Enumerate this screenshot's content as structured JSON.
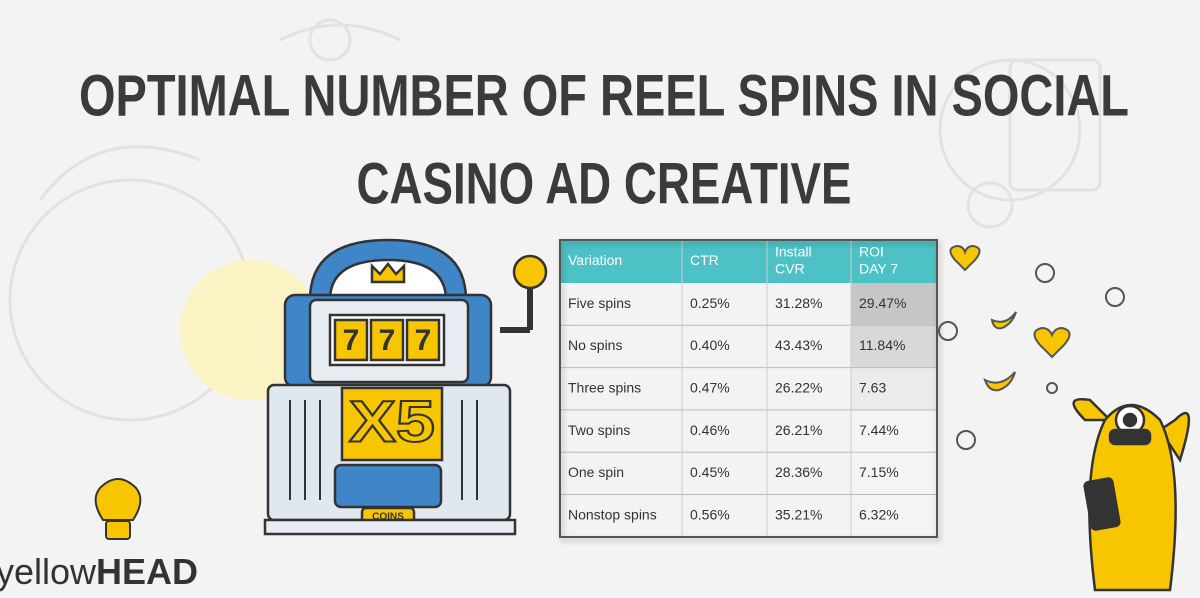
{
  "title": [
    "OPTIMAL NUMBER OF REEL SPINS IN SOCIAL",
    "CASINO AD CREATIVE"
  ],
  "table": {
    "header": [
      [
        "Variation"
      ],
      [
        "CTR"
      ],
      [
        "Install",
        "CVR"
      ],
      [
        "ROI",
        "DAY 7"
      ]
    ],
    "rows": [
      [
        "Five spins",
        "0.25%",
        "31.28%",
        "29.47%"
      ],
      [
        "No spins",
        "0.40%",
        "43.43%",
        "11.84%"
      ],
      [
        "Three spins",
        "0.47%",
        "26.22%",
        "7.63"
      ],
      [
        "Two spins",
        "0.46%",
        "26.21%",
        "7.44%"
      ],
      [
        "One spin",
        "0.45%",
        "28.36%",
        "7.15%"
      ],
      [
        "Nonstop spins",
        "0.56%",
        "35.21%",
        "6.32%"
      ]
    ]
  },
  "slot_machine": {
    "reels": [
      "7",
      "7",
      "7"
    ],
    "multiplier": "X5",
    "label": "COINS"
  },
  "logo": {
    "prefix": "yellow",
    "suffix": "HEAD"
  }
}
